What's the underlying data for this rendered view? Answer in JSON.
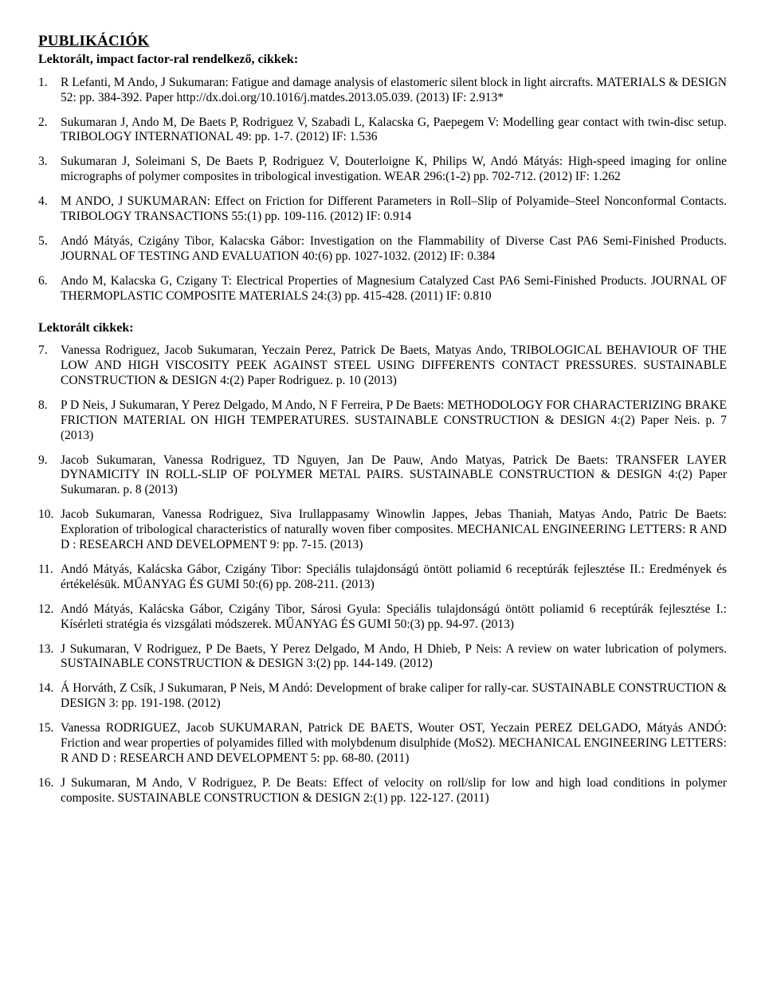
{
  "title": "PUBLIKÁCIÓK",
  "subtitle1": "Lektorált, impact factor-ral rendelkező, cikkek:",
  "subtitle2": "Lektorált cikkek:",
  "listA": [
    {
      "n": "1.",
      "t": "R Lefanti, M Ando, J Sukumaran: Fatigue and damage analysis of elastomeric silent block in light aircrafts. MATERIALS & DESIGN 52: pp. 384-392. Paper http://dx.doi.org/10.1016/j.matdes.2013.05.039. (2013) IF: 2.913*"
    },
    {
      "n": "2.",
      "t": "Sukumaran J, Ando M, De Baets P, Rodriguez V, Szabadi L, Kalacska G, Paepegem V: Modelling gear contact with twin-disc setup. TRIBOLOGY INTERNATIONAL 49: pp. 1-7. (2012) IF: 1.536"
    },
    {
      "n": "3.",
      "t": "Sukumaran J, Soleimani S, De Baets P, Rodriguez V, Douterloigne K, Philips W, Andó Mátyás: High-speed imaging for online micrographs of polymer composites in tribological investigation. WEAR 296:(1-2) pp. 702-712. (2012) IF: 1.262"
    },
    {
      "n": "4.",
      "t": "M ANDO, J SUKUMARAN: Effect on Friction for Different Parameters in Roll–Slip of Polyamide–Steel Nonconformal Contacts. TRIBOLOGY TRANSACTIONS 55:(1) pp. 109-116. (2012) IF: 0.914"
    },
    {
      "n": "5.",
      "t": "Andó Mátyás, Czigány Tibor, Kalacska Gábor: Investigation on the Flammability of Diverse Cast PA6 Semi-Finished Products. JOURNAL OF TESTING AND EVALUATION 40:(6) pp. 1027-1032. (2012) IF: 0.384"
    },
    {
      "n": "6.",
      "t": "Ando M, Kalacska G, Czigany T: Electrical Properties of Magnesium Catalyzed Cast PA6 Semi-Finished Products. JOURNAL OF THERMOPLASTIC COMPOSITE MATERIALS 24:(3) pp. 415-428. (2011) IF: 0.810"
    }
  ],
  "listB": [
    {
      "n": "7.",
      "t": "Vanessa Rodriguez, Jacob Sukumaran, Yeczain Perez, Patrick De Baets, Matyas Ando, TRIBOLOGICAL BEHAVIOUR OF THE LOW AND HIGH VISCOSITY PEEK AGAINST STEEL USING DIFFERENTS CONTACT PRESSURES. SUSTAINABLE CONSTRUCTION & DESIGN 4:(2) Paper Rodriguez. p. 10 (2013)"
    },
    {
      "n": "8.",
      "t": "P D Neis, J Sukumaran, Y Perez Delgado, M Ando, N F Ferreira, P De Baets: METHODOLOGY FOR CHARACTERIZING BRAKE FRICTION MATERIAL ON HIGH TEMPERATURES. SUSTAINABLE CONSTRUCTION & DESIGN 4:(2) Paper Neis. p. 7 (2013)"
    },
    {
      "n": "9.",
      "t": "Jacob Sukumaran, Vanessa Rodriguez, TD Nguyen, Jan De Pauw, Ando Matyas, Patrick De Baets: TRANSFER LAYER DYNAMICITY IN ROLL-SLIP OF POLYMER METAL PAIRS. SUSTAINABLE CONSTRUCTION & DESIGN 4:(2) Paper Sukumaran. p. 8 (2013)"
    },
    {
      "n": "10.",
      "t": "Jacob Sukumaran, Vanessa Rodriguez, Siva Irullappasamy Winowlin Jappes, Jebas Thaniah, Matyas Ando, Patric De Baets: Exploration of tribological characteristics of naturally woven fiber composites. MECHANICAL ENGINEERING LETTERS: R AND D : RESEARCH AND DEVELOPMENT 9: pp. 7-15. (2013)"
    },
    {
      "n": "11.",
      "t": "Andó Mátyás, Kalácska Gábor, Czigány Tibor: Speciális tulajdonságú öntött poliamid 6 receptúrák fejlesztése II.: Eredmények és értékelésük. MŰANYAG ÉS GUMI 50:(6) pp. 208-211. (2013)"
    },
    {
      "n": "12.",
      "t": "Andó Mátyás, Kalácska Gábor, Czigány Tibor, Sárosi Gyula: Speciális tulajdonságú öntött poliamid 6 receptúrák fejlesztése I.: Kísérleti stratégia és vizsgálati módszerek. MŰANYAG ÉS GUMI 50:(3) pp. 94-97. (2013)"
    },
    {
      "n": "13.",
      "t": "J Sukumaran, V Rodriguez, P De Baets, Y Perez Delgado, M Ando, H Dhieb, P Neis: A review on water lubrication of polymers. SUSTAINABLE CONSTRUCTION & DESIGN 3:(2) pp. 144-149. (2012)"
    },
    {
      "n": "14.",
      "t": "Á Horváth, Z Csík, J Sukumaran, P Neis, M Andó: Development of brake caliper for rally-car. SUSTAINABLE CONSTRUCTION & DESIGN 3: pp. 191-198. (2012)"
    },
    {
      "n": "15.",
      "t": "Vanessa RODRIGUEZ, Jacob SUKUMARAN, Patrick DE BAETS, Wouter OST, Yeczain PEREZ DELGADO, Mátyás ANDÓ: Friction and wear properties of polyamides filled with molybdenum disulphide (MoS2). MECHANICAL ENGINEERING LETTERS: R AND D : RESEARCH AND DEVELOPMENT 5: pp. 68-80. (2011)"
    },
    {
      "n": "16.",
      "t": "J Sukumaran, M Ando, V Rodriguez, P. De Beats: Effect of velocity on roll/slip for low and high load conditions in polymer composite. SUSTAINABLE CONSTRUCTION & DESIGN 2:(1) pp. 122-127. (2011)"
    }
  ]
}
